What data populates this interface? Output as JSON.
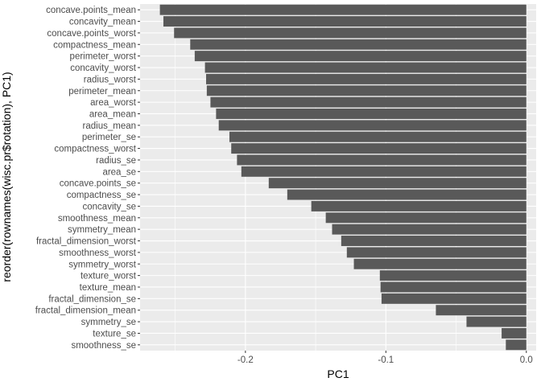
{
  "chart_data": {
    "type": "bar",
    "orientation": "horizontal",
    "xlabel": "PC1",
    "ylabel": "reorder(rownames(wisc.pr$rotation), PC1)",
    "xlim": [
      -0.275,
      0.007
    ],
    "xticks": [
      -0.2,
      -0.1,
      0.0
    ],
    "xtick_labels": [
      "-0.2",
      "-0.1",
      "0.0"
    ],
    "grid": true,
    "colors": {
      "bar": "#595959",
      "panel": "#ebebeb",
      "grid": "#ffffff"
    },
    "categories": [
      "smoothness_se",
      "texture_se",
      "symmetry_se",
      "fractal_dimension_mean",
      "fractal_dimension_se",
      "texture_mean",
      "texture_worst",
      "symmetry_worst",
      "smoothness_worst",
      "fractal_dimension_worst",
      "symmetry_mean",
      "smoothness_mean",
      "concavity_se",
      "compactness_se",
      "concave.points_se",
      "area_se",
      "radius_se",
      "compactness_worst",
      "perimeter_se",
      "radius_mean",
      "area_mean",
      "area_worst",
      "perimeter_mean",
      "radius_worst",
      "concavity_worst",
      "perimeter_worst",
      "compactness_mean",
      "concave.points_worst",
      "concavity_mean",
      "concave.points_mean"
    ],
    "values": [
      -0.0146,
      -0.0176,
      -0.0426,
      -0.0644,
      -0.1031,
      -0.1038,
      -0.1043,
      -0.1228,
      -0.1278,
      -0.1318,
      -0.1383,
      -0.1428,
      -0.1531,
      -0.1702,
      -0.1834,
      -0.2029,
      -0.206,
      -0.2101,
      -0.2114,
      -0.219,
      -0.2209,
      -0.2249,
      -0.2275,
      -0.228,
      -0.2288,
      -0.2361,
      -0.2393,
      -0.2508,
      -0.2584,
      -0.2609
    ]
  }
}
